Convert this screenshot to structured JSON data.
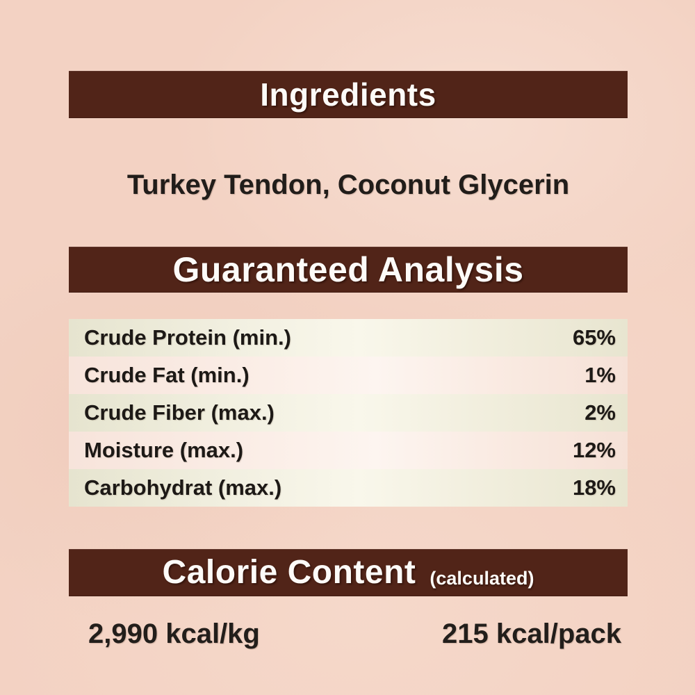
{
  "label": {
    "colors": {
      "background": "#f3d2c3",
      "banner": "#512418",
      "banner_text": "#fdfbf8",
      "body_text": "#211d1a",
      "stripe_green": "#ece9d8",
      "stripe_pink": "#faeae2"
    },
    "ingredients": {
      "title": "Ingredients",
      "content": "Turkey Tendon, Coconut Glycerin"
    },
    "guaranteed_analysis": {
      "title": "Guaranteed Analysis",
      "rows": [
        {
          "label": "Crude Protein (min.)",
          "value": "65%"
        },
        {
          "label": "Crude Fat (min.)",
          "value": "1%"
        },
        {
          "label": "Crude Fiber (max.)",
          "value": "2%"
        },
        {
          "label": "Moisture (max.)",
          "value": "12%"
        },
        {
          "label": "Carbohydrat (max.)",
          "value": "18%"
        }
      ]
    },
    "calorie_content": {
      "title": "Calorie Content",
      "subtitle": "(calculated)",
      "kcal_per_kg": "2,990 kcal/kg",
      "kcal_per_pack": "215 kcal/pack"
    }
  }
}
